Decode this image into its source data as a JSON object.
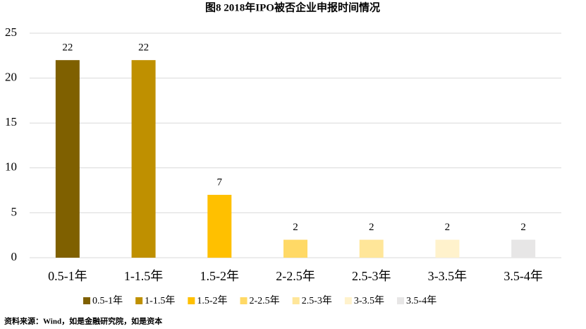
{
  "chart_data": {
    "type": "bar",
    "title": "图8    2018年IPO被否企业申报时间情况",
    "categories": [
      "0.5-1年",
      "1-1.5年",
      "1.5-2年",
      "2-2.5年",
      "2.5-3年",
      "3-3.5年",
      "3.5-4年"
    ],
    "values": [
      22,
      22,
      7,
      2,
      2,
      2,
      2
    ],
    "colors": [
      "#7f6000",
      "#bf9000",
      "#ffc000",
      "#ffd966",
      "#ffe699",
      "#fff2cc",
      "#e7e6e6"
    ],
    "ylim": [
      0,
      25
    ],
    "yticks": [
      0,
      5,
      10,
      15,
      20,
      25
    ],
    "grid": true,
    "source": "资料来源：Wind，如是金融研究院，如是资本"
  }
}
